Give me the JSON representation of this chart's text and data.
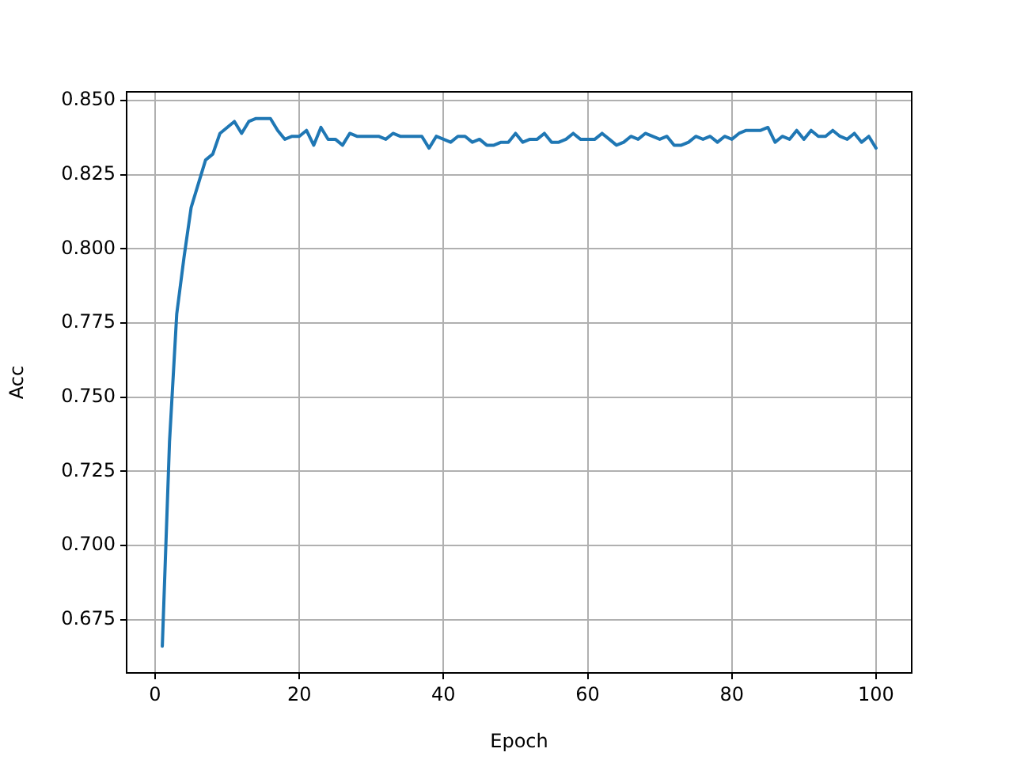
{
  "chart_data": {
    "type": "line",
    "xlabel": "Epoch",
    "ylabel": "Acc",
    "x": [
      1,
      2,
      3,
      4,
      5,
      6,
      7,
      8,
      9,
      10,
      11,
      12,
      13,
      14,
      15,
      16,
      17,
      18,
      19,
      20,
      21,
      22,
      23,
      24,
      25,
      26,
      27,
      28,
      29,
      30,
      31,
      32,
      33,
      34,
      35,
      36,
      37,
      38,
      39,
      40,
      41,
      42,
      43,
      44,
      45,
      46,
      47,
      48,
      49,
      50,
      51,
      52,
      53,
      54,
      55,
      56,
      57,
      58,
      59,
      60,
      61,
      62,
      63,
      64,
      65,
      66,
      67,
      68,
      69,
      70,
      71,
      72,
      73,
      74,
      75,
      76,
      77,
      78,
      79,
      80,
      81,
      82,
      83,
      84,
      85,
      86,
      87,
      88,
      89,
      90,
      91,
      92,
      93,
      94,
      95,
      96,
      97,
      98,
      99,
      100
    ],
    "series": [
      {
        "color": "#1f77b4",
        "values": [
          0.666,
          0.735,
          0.778,
          0.797,
          0.814,
          0.822,
          0.83,
          0.832,
          0.839,
          0.841,
          0.843,
          0.839,
          0.843,
          0.844,
          0.844,
          0.844,
          0.84,
          0.837,
          0.838,
          0.838,
          0.84,
          0.835,
          0.841,
          0.837,
          0.837,
          0.835,
          0.839,
          0.838,
          0.838,
          0.838,
          0.838,
          0.837,
          0.839,
          0.838,
          0.838,
          0.838,
          0.838,
          0.834,
          0.838,
          0.837,
          0.836,
          0.838,
          0.838,
          0.836,
          0.837,
          0.835,
          0.835,
          0.836,
          0.836,
          0.839,
          0.836,
          0.837,
          0.837,
          0.839,
          0.836,
          0.836,
          0.837,
          0.839,
          0.837,
          0.837,
          0.837,
          0.839,
          0.837,
          0.835,
          0.836,
          0.838,
          0.837,
          0.839,
          0.838,
          0.837,
          0.838,
          0.835,
          0.835,
          0.836,
          0.838,
          0.837,
          0.838,
          0.836,
          0.838,
          0.837,
          0.839,
          0.84,
          0.84,
          0.84,
          0.841,
          0.836,
          0.838,
          0.837,
          0.84,
          0.837,
          0.84,
          0.838,
          0.838,
          0.84,
          0.838,
          0.837,
          0.839,
          0.836,
          0.838,
          0.834
        ]
      }
    ],
    "xlim": [
      -3.95,
      104.95
    ],
    "xticks": [
      0,
      20,
      40,
      60,
      80,
      100
    ],
    "ylim": [
      0.657,
      0.853
    ],
    "yticks": [
      {
        "value": 0.675,
        "label": "0.675"
      },
      {
        "value": 0.7,
        "label": "0.700"
      },
      {
        "value": 0.725,
        "label": "0.725"
      },
      {
        "value": 0.75,
        "label": "0.750"
      },
      {
        "value": 0.775,
        "label": "0.775"
      },
      {
        "value": 0.8,
        "label": "0.800"
      },
      {
        "value": 0.825,
        "label": "0.825"
      },
      {
        "value": 0.85,
        "label": "0.850"
      }
    ],
    "grid": true,
    "legend": false,
    "line_style": "solid",
    "marker": "none"
  }
}
